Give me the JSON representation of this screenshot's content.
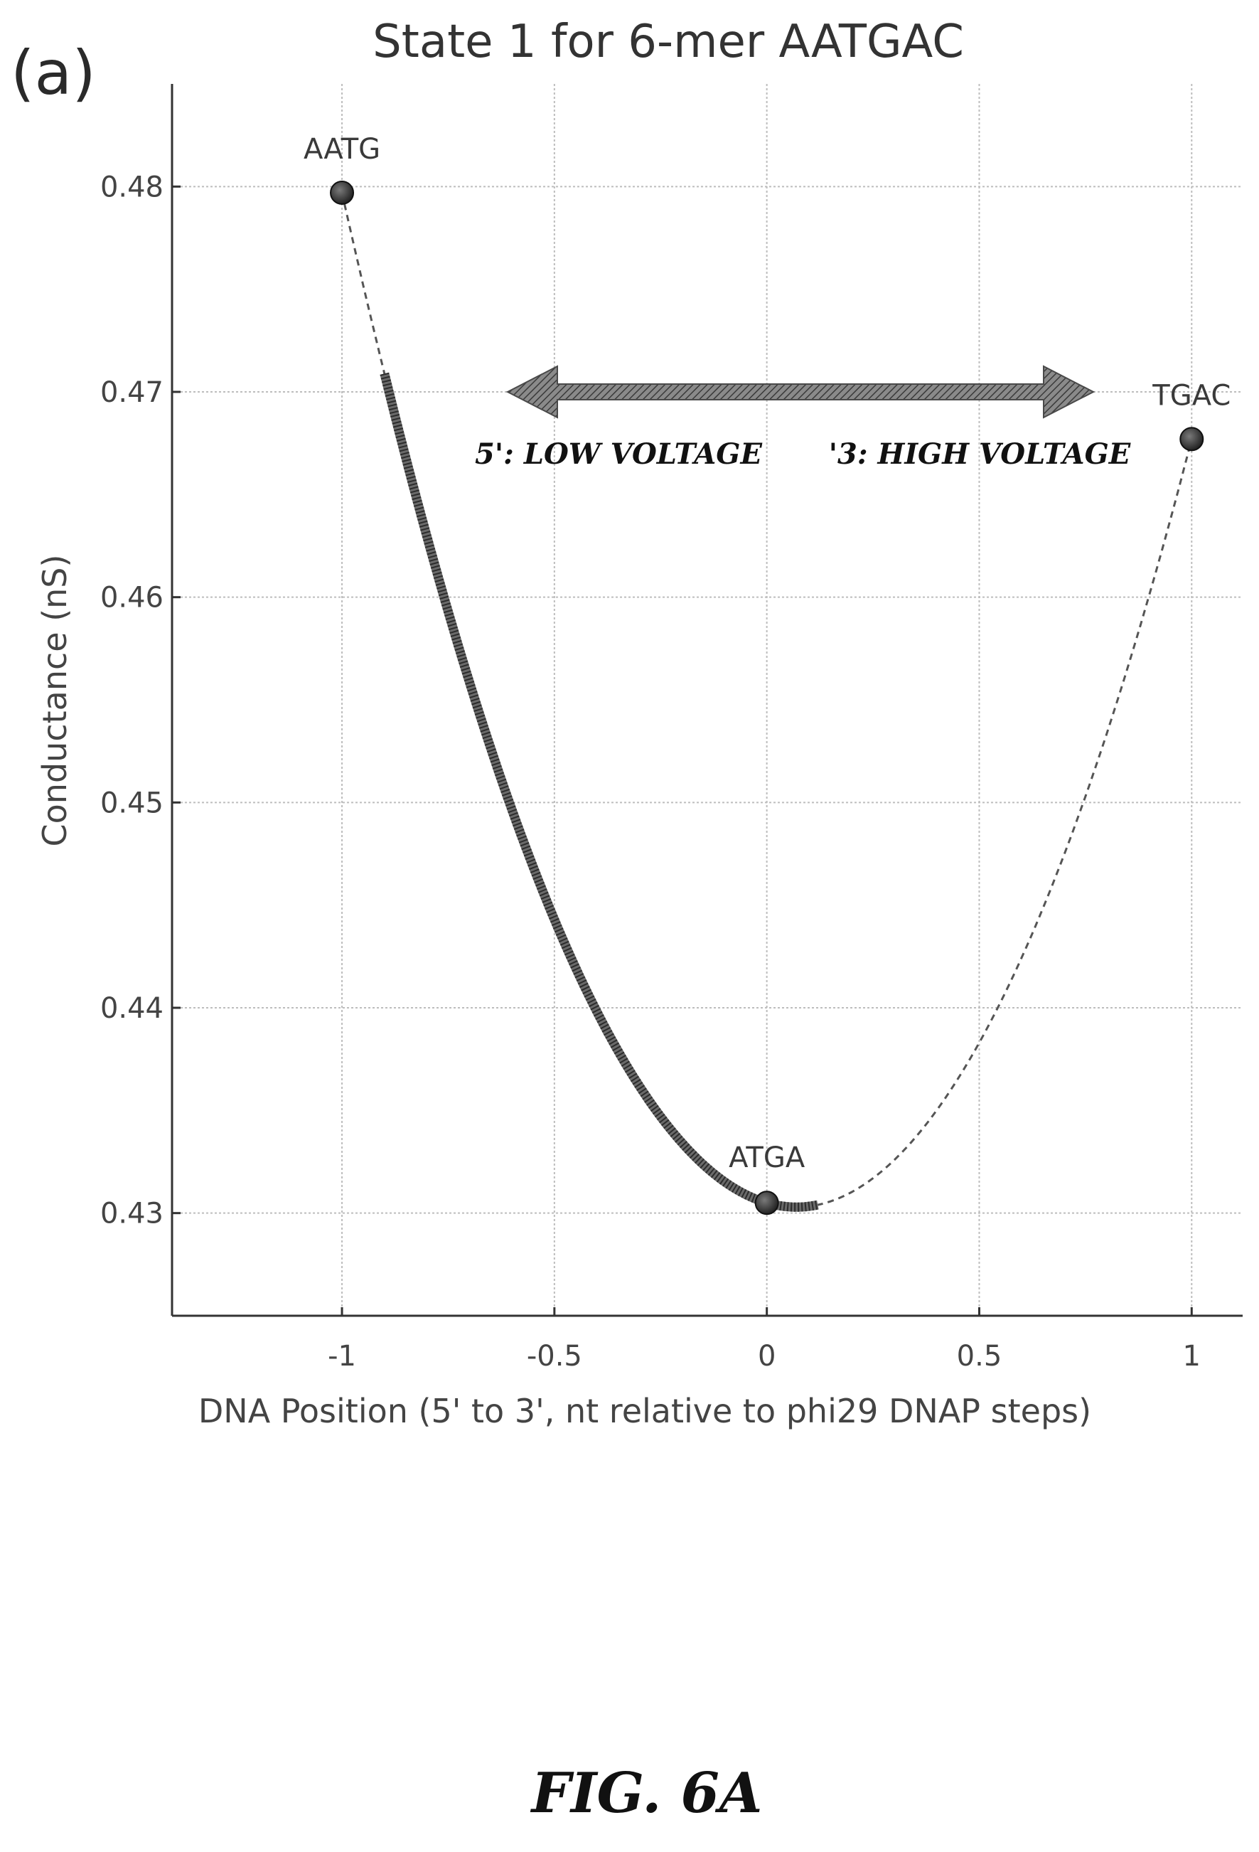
{
  "figure": {
    "panel_label": "(a)",
    "caption": "FIG. 6A"
  },
  "chart_data": {
    "type": "line",
    "title": "State 1 for 6-mer AATGAC",
    "xlabel": "DNA Position (5' to 3', nt relative to phi29 DNAP steps)",
    "ylabel": "Conductance (nS)",
    "xlim": [
      -1.4,
      1.12
    ],
    "ylim": [
      0.425,
      0.485
    ],
    "xticks": [
      -1,
      -0.5,
      0,
      0.5,
      1
    ],
    "xtick_labels": [
      "-1",
      "-0.5",
      "0",
      "0.5",
      "1"
    ],
    "yticks": [
      0.43,
      0.44,
      0.45,
      0.46,
      0.47,
      0.48
    ],
    "ytick_labels": [
      "0.43",
      "0.44",
      "0.45",
      "0.46",
      "0.47",
      "0.48"
    ],
    "grid": true,
    "points": [
      {
        "label": "AATG",
        "x": -1,
        "y": 0.4797
      },
      {
        "label": "ATGA",
        "x": 0,
        "y": 0.4305
      },
      {
        "label": "TGAC",
        "x": 1,
        "y": 0.4677
      }
    ],
    "fit_curve": {
      "style": "dashed",
      "x_range": [
        -1,
        1
      ],
      "a": 0.0432,
      "b": -0.006,
      "c": 0.4305
    },
    "highlighted_segment": {
      "style": "thick-solid",
      "x_range": [
        -0.9,
        0.12
      ]
    },
    "annotations": [
      {
        "id": "low-voltage",
        "text": "5': LOW VOLTAGE",
        "direction": "left"
      },
      {
        "id": "high-voltage",
        "text": "'3: HIGH VOLTAGE",
        "direction": "right"
      }
    ],
    "colors": {
      "axis": "#333333",
      "grid": "#bdbdbd",
      "curve": "#555555",
      "highlight": "#6a6a6a",
      "marker": "#333333",
      "arrow": "#6e6e6e"
    }
  }
}
